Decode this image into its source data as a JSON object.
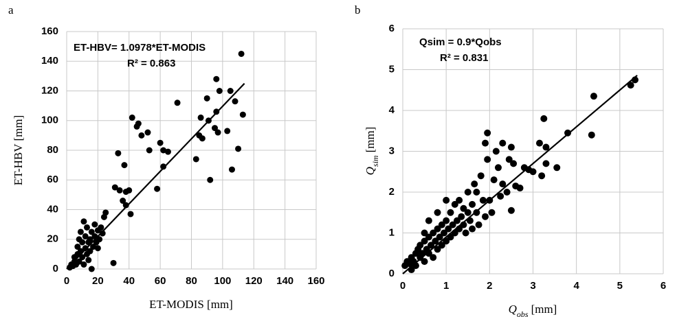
{
  "chart_data": [
    {
      "type": "scatter",
      "panel_label": "a",
      "xlabel": "ET-MODIS [mm]",
      "ylabel": "ET-HBV [mm]",
      "annotations": [
        "ET-HBV= 1.0978*ET-MODIS",
        "R² = 0.863"
      ],
      "xlim": [
        0,
        160
      ],
      "ylim": [
        0,
        160
      ],
      "xticks": [
        0,
        20,
        40,
        60,
        80,
        100,
        120,
        140,
        160
      ],
      "yticks": [
        0,
        20,
        40,
        60,
        80,
        100,
        120,
        140,
        160
      ],
      "grid": true,
      "color": "#000000",
      "x": [
        2,
        3,
        4,
        5,
        5,
        6,
        7,
        7,
        8,
        8,
        9,
        9,
        10,
        10,
        11,
        11,
        12,
        12,
        13,
        13,
        14,
        14,
        15,
        15,
        16,
        17,
        18,
        18,
        19,
        20,
        21,
        22,
        23,
        24,
        25,
        20,
        16,
        30,
        31,
        33,
        34,
        36,
        37,
        38,
        38,
        40,
        41,
        42,
        45,
        46,
        48,
        52,
        53,
        58,
        60,
        62,
        62,
        65,
        71,
        83,
        85,
        86,
        87,
        90,
        91,
        92,
        95,
        96,
        96,
        97,
        98,
        103,
        105,
        106,
        108,
        110,
        112,
        113
      ],
      "values": [
        1,
        3,
        2,
        5,
        8,
        3,
        10,
        15,
        5,
        20,
        12,
        25,
        8,
        18,
        32,
        3,
        14,
        22,
        10,
        28,
        6,
        18,
        20,
        12,
        25,
        15,
        22,
        30,
        18,
        26,
        20,
        28,
        24,
        35,
        38,
        14,
        0,
        4,
        55,
        78,
        53,
        46,
        70,
        43,
        52,
        53,
        37,
        102,
        96,
        98,
        90,
        92,
        80,
        54,
        85,
        80,
        69,
        79,
        112,
        74,
        90,
        102,
        88,
        115,
        100,
        60,
        95,
        128,
        106,
        92,
        120,
        93,
        120,
        67,
        113,
        81,
        145,
        104
      ],
      "trendline": {
        "x": [
          0,
          114
        ],
        "y": [
          0,
          125
        ]
      }
    },
    {
      "type": "scatter",
      "panel_label": "b",
      "xlabel": {
        "symbol": "Q",
        "subscript": "obs",
        "unit": "[mm]"
      },
      "ylabel": {
        "symbol": "Q",
        "subscript": "sim",
        "unit": "[mm]"
      },
      "annotations": [
        "Qsim = 0.9*Qobs",
        "R² = 0.831"
      ],
      "xlim": [
        0,
        6
      ],
      "ylim": [
        0,
        6
      ],
      "xticks": [
        0,
        1,
        2,
        3,
        4,
        5,
        6
      ],
      "yticks": [
        0,
        1,
        2,
        3,
        4,
        5,
        6
      ],
      "grid": true,
      "color": "#000000",
      "x": [
        0.05,
        0.1,
        0.15,
        0.2,
        0.25,
        0.3,
        0.3,
        0.35,
        0.4,
        0.4,
        0.45,
        0.5,
        0.5,
        0.55,
        0.6,
        0.6,
        0.65,
        0.7,
        0.7,
        0.75,
        0.8,
        0.8,
        0.85,
        0.9,
        0.9,
        0.95,
        1.0,
        1.0,
        1.05,
        1.1,
        1.1,
        1.15,
        1.2,
        1.2,
        1.25,
        1.3,
        1.3,
        1.35,
        1.4,
        1.4,
        1.45,
        1.5,
        1.5,
        1.55,
        1.6,
        1.6,
        1.65,
        1.7,
        1.75,
        1.8,
        1.85,
        1.9,
        1.9,
        1.95,
        1.95,
        2.0,
        2.05,
        2.1,
        2.15,
        2.2,
        2.25,
        2.3,
        2.3,
        2.4,
        2.45,
        2.5,
        2.5,
        2.55,
        2.6,
        2.7,
        2.8,
        2.9,
        3.0,
        3.15,
        3.2,
        3.25,
        3.3,
        3.3,
        3.55,
        3.8,
        4.35,
        4.4,
        5.25,
        5.35,
        0.2,
        0.6,
        0.8,
        0.5,
        1.0,
        1.7
      ],
      "values": [
        0.2,
        0.3,
        0.25,
        0.4,
        0.3,
        0.5,
        0.2,
        0.6,
        0.4,
        0.7,
        0.5,
        0.3,
        0.8,
        0.6,
        0.5,
        0.9,
        0.7,
        0.4,
        1.0,
        0.8,
        0.6,
        1.1,
        0.9,
        0.7,
        1.2,
        1.0,
        0.8,
        1.3,
        1.1,
        0.9,
        1.5,
        1.2,
        1.0,
        1.7,
        1.3,
        1.1,
        1.8,
        1.4,
        1.2,
        1.6,
        1.0,
        1.5,
        2.0,
        1.3,
        1.7,
        1.1,
        2.2,
        1.5,
        1.2,
        2.4,
        1.8,
        3.2,
        1.4,
        3.45,
        2.8,
        1.8,
        1.5,
        2.3,
        3.0,
        2.6,
        1.9,
        3.2,
        2.2,
        2.0,
        2.8,
        1.55,
        3.1,
        2.7,
        2.15,
        2.1,
        2.6,
        2.55,
        2.5,
        3.2,
        2.4,
        3.8,
        3.1,
        2.7,
        2.6,
        3.45,
        3.4,
        4.35,
        4.62,
        4.75,
        0.1,
        1.3,
        1.5,
        1.0,
        1.8,
        2.0
      ],
      "trendline": {
        "x": [
          0,
          5.4
        ],
        "y": [
          0,
          4.86
        ]
      }
    }
  ]
}
